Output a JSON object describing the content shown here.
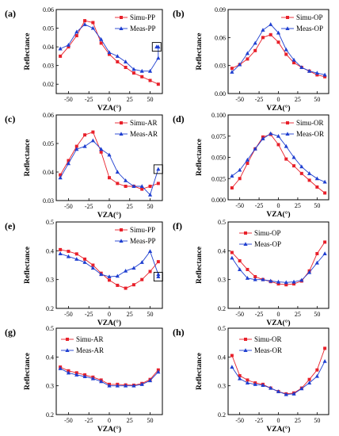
{
  "chart_data": [
    {
      "panel": "(a)",
      "type": "line",
      "xlabel": "VZA(°)",
      "ylabel": "Reflectance",
      "xlim": [
        -65,
        65
      ],
      "ylim": [
        0.015,
        0.06
      ],
      "xticks": [
        -50,
        -25,
        0,
        25,
        50
      ],
      "yticks": [
        0.02,
        0.03,
        0.04,
        0.05,
        0.06
      ],
      "ytick_labels": [
        "0.02",
        "0.03",
        "0.04",
        "0.05",
        "0.06"
      ],
      "legend_position": "top-right",
      "boxed_point": {
        "series": 1,
        "index": 14
      },
      "series": [
        {
          "name": "Simu-PP",
          "color": "#e8202a",
          "marker": "square",
          "x": [
            -60,
            -50,
            -40,
            -30,
            -20,
            -10,
            0,
            10,
            20,
            30,
            40,
            50,
            60
          ],
          "values": [
            0.035,
            0.04,
            0.046,
            0.054,
            0.053,
            0.042,
            0.036,
            0.032,
            0.029,
            0.026,
            0.024,
            0.022,
            0.02
          ]
        },
        {
          "name": "Meas-PP",
          "color": "#1f3fd0",
          "marker": "triangle",
          "x": [
            -60,
            -50,
            -40,
            -30,
            -20,
            -10,
            0,
            10,
            20,
            30,
            40,
            50,
            60,
            60,
            58
          ],
          "values": [
            0.039,
            0.041,
            0.048,
            0.052,
            0.05,
            0.044,
            0.037,
            0.035,
            0.032,
            0.028,
            0.027,
            0.027,
            0.034,
            0.04,
            0.04
          ]
        }
      ]
    },
    {
      "panel": "(b)",
      "type": "line",
      "xlabel": "VZA(°)",
      "ylabel": "Reflectance",
      "xlim": [
        -65,
        65
      ],
      "ylim": [
        0.0,
        0.09
      ],
      "xticks": [
        -50,
        -25,
        0,
        25,
        50
      ],
      "yticks": [
        0.0,
        0.03,
        0.06,
        0.09
      ],
      "ytick_labels": [
        "0.00",
        "0.03",
        "0.06",
        "0.09"
      ],
      "legend_position": "top-right",
      "series": [
        {
          "name": "Simu-OP",
          "color": "#e8202a",
          "marker": "square",
          "x": [
            -60,
            -50,
            -40,
            -30,
            -20,
            -10,
            0,
            10,
            20,
            30,
            40,
            50,
            60
          ],
          "values": [
            0.027,
            0.031,
            0.037,
            0.046,
            0.06,
            0.063,
            0.055,
            0.042,
            0.033,
            0.028,
            0.024,
            0.02,
            0.018
          ]
        },
        {
          "name": "Meas-OP",
          "color": "#1f3fd0",
          "marker": "triangle",
          "x": [
            -60,
            -50,
            -40,
            -30,
            -20,
            -10,
            0,
            10,
            20,
            30,
            40,
            50,
            60
          ],
          "values": [
            0.023,
            0.031,
            0.043,
            0.054,
            0.068,
            0.074,
            0.065,
            0.047,
            0.036,
            0.028,
            0.024,
            0.022,
            0.02
          ]
        }
      ]
    },
    {
      "panel": "(c)",
      "type": "line",
      "xlabel": "VZA(°)",
      "ylabel": "Reflectance",
      "xlim": [
        -65,
        65
      ],
      "ylim": [
        0.03,
        0.06
      ],
      "xticks": [
        -50,
        -25,
        0,
        25,
        50
      ],
      "yticks": [
        0.03,
        0.04,
        0.05,
        0.06
      ],
      "ytick_labels": [
        "0.03",
        "0.04",
        "0.05",
        "0.06"
      ],
      "legend_position": "top-right",
      "boxed_point": {
        "series": 1,
        "index": 12
      },
      "series": [
        {
          "name": "Simu-AR",
          "color": "#e8202a",
          "marker": "square",
          "x": [
            -60,
            -50,
            -40,
            -30,
            -20,
            -10,
            0,
            10,
            20,
            30,
            40,
            50,
            60
          ],
          "values": [
            0.039,
            0.044,
            0.049,
            0.053,
            0.054,
            0.047,
            0.038,
            0.036,
            0.035,
            0.035,
            0.034,
            0.035,
            0.036
          ]
        },
        {
          "name": "Meas-AR",
          "color": "#1f3fd0",
          "marker": "triangle",
          "x": [
            -60,
            -50,
            -40,
            -30,
            -20,
            -10,
            0,
            10,
            20,
            30,
            40,
            50,
            60
          ],
          "values": [
            0.038,
            0.043,
            0.048,
            0.049,
            0.051,
            0.048,
            0.046,
            0.04,
            0.037,
            0.035,
            0.035,
            0.032,
            0.041
          ]
        }
      ]
    },
    {
      "panel": "(d)",
      "type": "line",
      "xlabel": "VZA(°)",
      "ylabel": "Reflectance",
      "xlim": [
        -65,
        65
      ],
      "ylim": [
        0.0,
        0.1
      ],
      "xticks": [
        -50,
        -25,
        0,
        25,
        50
      ],
      "yticks": [
        0.0,
        0.025,
        0.05,
        0.075,
        0.1
      ],
      "ytick_labels": [
        "0.000",
        "0.025",
        "0.050",
        "0.075",
        "0.100"
      ],
      "legend_position": "top-right",
      "series": [
        {
          "name": "Simu-OR",
          "color": "#e8202a",
          "marker": "square",
          "x": [
            -60,
            -50,
            -40,
            -30,
            -20,
            -10,
            0,
            10,
            20,
            30,
            40,
            50,
            60
          ],
          "values": [
            0.014,
            0.025,
            0.043,
            0.06,
            0.074,
            0.077,
            0.065,
            0.048,
            0.04,
            0.031,
            0.023,
            0.015,
            0.008
          ]
        },
        {
          "name": "Meas-OR",
          "color": "#1f3fd0",
          "marker": "triangle",
          "x": [
            -60,
            -50,
            -40,
            -30,
            -20,
            -10,
            0,
            10,
            20,
            30,
            40,
            50,
            60
          ],
          "values": [
            0.028,
            0.035,
            0.047,
            0.06,
            0.072,
            0.078,
            0.075,
            0.063,
            0.05,
            0.039,
            0.031,
            0.025,
            0.021
          ]
        }
      ]
    },
    {
      "panel": "(e)",
      "type": "line",
      "xlabel": "VZA(°)",
      "ylabel": "Reflectance",
      "xlim": [
        -65,
        65
      ],
      "ylim": [
        0.2,
        0.5
      ],
      "xticks": [
        -50,
        -25,
        0,
        25,
        50
      ],
      "yticks": [
        0.2,
        0.3,
        0.4,
        0.5
      ],
      "ytick_labels": [
        "0.2",
        "0.3",
        "0.4",
        "0.5"
      ],
      "legend_position": "top-right",
      "boxed_point": {
        "series": 1,
        "index": 13
      },
      "series": [
        {
          "name": "Simu-PP",
          "color": "#e8202a",
          "marker": "square",
          "x": [
            -60,
            -50,
            -40,
            -30,
            -20,
            -10,
            0,
            10,
            20,
            30,
            40,
            50,
            60
          ],
          "values": [
            0.404,
            0.398,
            0.389,
            0.371,
            0.35,
            0.322,
            0.298,
            0.28,
            0.27,
            0.282,
            0.3,
            0.328,
            0.362
          ]
        },
        {
          "name": "Meas-PP",
          "color": "#1f3fd0",
          "marker": "triangle",
          "x": [
            -60,
            -50,
            -40,
            -30,
            -20,
            -10,
            0,
            10,
            20,
            30,
            40,
            50,
            60,
            60
          ],
          "values": [
            0.39,
            0.38,
            0.371,
            0.36,
            0.34,
            0.318,
            0.31,
            0.312,
            0.33,
            0.34,
            0.36,
            0.398,
            0.318,
            0.31
          ]
        }
      ]
    },
    {
      "panel": "(f)",
      "type": "line",
      "xlabel": "VZA(°)",
      "ylabel": "Reflectance",
      "xlim": [
        -65,
        65
      ],
      "ylim": [
        0.2,
        0.5
      ],
      "xticks": [
        -50,
        -25,
        0,
        25,
        50
      ],
      "yticks": [
        0.2,
        0.3,
        0.4,
        0.5
      ],
      "ytick_labels": [
        "0.2",
        "0.3",
        "0.4",
        "0.5"
      ],
      "legend_position": "top-center",
      "series": [
        {
          "name": "Simu-OP",
          "color": "#e8202a",
          "marker": "square",
          "x": [
            -60,
            -50,
            -40,
            -30,
            -20,
            -10,
            0,
            10,
            20,
            30,
            40,
            50,
            60
          ],
          "values": [
            0.394,
            0.365,
            0.335,
            0.31,
            0.3,
            0.293,
            0.285,
            0.282,
            0.285,
            0.295,
            0.33,
            0.39,
            0.43
          ]
        },
        {
          "name": "Meas-OP",
          "color": "#1f3fd0",
          "marker": "triangle",
          "x": [
            -60,
            -50,
            -40,
            -30,
            -20,
            -10,
            0,
            10,
            20,
            30,
            40,
            50,
            60
          ],
          "values": [
            0.375,
            0.335,
            0.305,
            0.3,
            0.3,
            0.295,
            0.292,
            0.29,
            0.292,
            0.298,
            0.325,
            0.358,
            0.39
          ]
        }
      ]
    },
    {
      "panel": "(g)",
      "type": "line",
      "xlabel": "VZA(°)",
      "ylabel": "Reflectance",
      "xlim": [
        -65,
        65
      ],
      "ylim": [
        0.2,
        0.5
      ],
      "xticks": [
        -50,
        -25,
        0,
        25,
        50
      ],
      "yticks": [
        0.2,
        0.3,
        0.4,
        0.5
      ],
      "ytick_labels": [
        "0.2",
        "0.3",
        "0.4",
        "0.5"
      ],
      "legend_position": "top-left",
      "series": [
        {
          "name": "Simu-AR",
          "color": "#e8202a",
          "marker": "square",
          "x": [
            -60,
            -50,
            -40,
            -30,
            -20,
            -10,
            0,
            10,
            20,
            30,
            40,
            50,
            60
          ],
          "values": [
            0.365,
            0.352,
            0.345,
            0.338,
            0.33,
            0.32,
            0.305,
            0.305,
            0.303,
            0.302,
            0.308,
            0.322,
            0.355
          ]
        },
        {
          "name": "Meas-AR",
          "color": "#1f3fd0",
          "marker": "triangle",
          "x": [
            -60,
            -50,
            -40,
            -30,
            -20,
            -10,
            0,
            10,
            20,
            30,
            40,
            50,
            60
          ],
          "values": [
            0.36,
            0.345,
            0.338,
            0.332,
            0.325,
            0.315,
            0.3,
            0.3,
            0.3,
            0.3,
            0.305,
            0.318,
            0.348
          ]
        }
      ]
    },
    {
      "panel": "(h)",
      "type": "line",
      "xlabel": "VZA(°)",
      "ylabel": "Reflectance",
      "xlim": [
        -65,
        65
      ],
      "ylim": [
        0.2,
        0.5
      ],
      "xticks": [
        -50,
        -25,
        0,
        25,
        50
      ],
      "yticks": [
        0.2,
        0.3,
        0.4,
        0.5
      ],
      "ytick_labels": [
        "0.2",
        "0.3",
        "0.4",
        "0.5"
      ],
      "legend_position": "top-center",
      "series": [
        {
          "name": "Simu-OR",
          "color": "#e8202a",
          "marker": "square",
          "x": [
            -60,
            -50,
            -40,
            -30,
            -20,
            -10,
            0,
            10,
            20,
            30,
            40,
            50,
            60
          ],
          "values": [
            0.405,
            0.335,
            0.32,
            0.31,
            0.305,
            0.292,
            0.28,
            0.272,
            0.275,
            0.292,
            0.322,
            0.355,
            0.43
          ]
        },
        {
          "name": "Meas-OR",
          "color": "#1f3fd0",
          "marker": "triangle",
          "x": [
            -60,
            -50,
            -40,
            -30,
            -20,
            -10,
            0,
            10,
            20,
            30,
            40,
            50,
            60
          ],
          "values": [
            0.365,
            0.325,
            0.31,
            0.305,
            0.302,
            0.292,
            0.28,
            0.27,
            0.272,
            0.29,
            0.31,
            0.333,
            0.385
          ]
        }
      ]
    }
  ]
}
